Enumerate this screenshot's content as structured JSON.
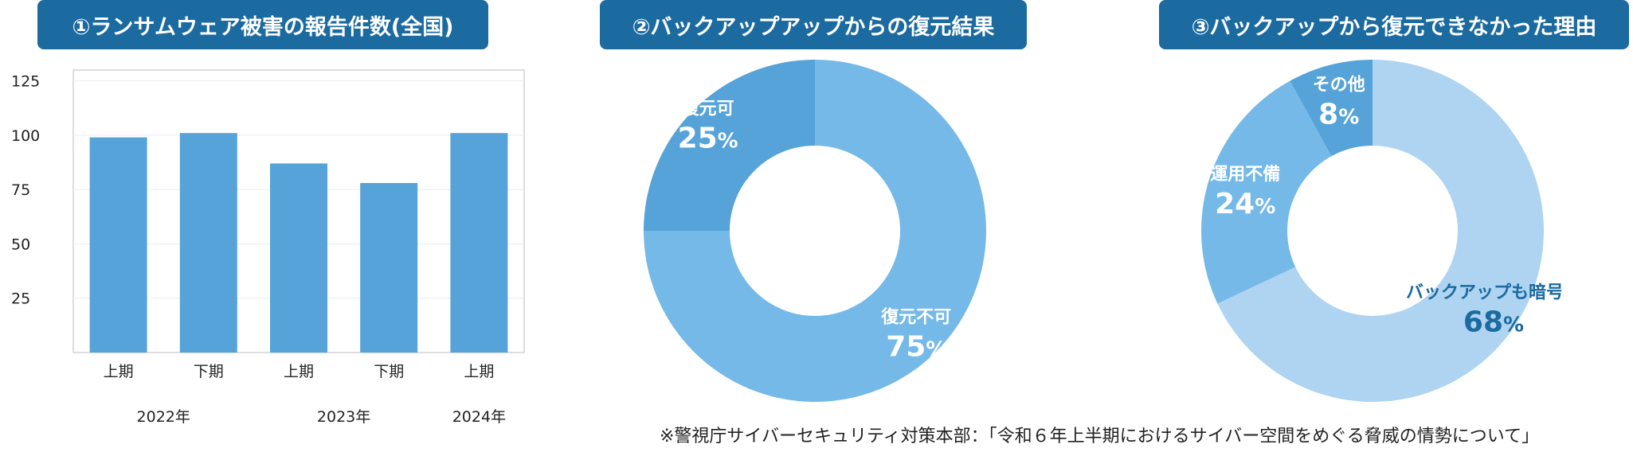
{
  "titles": [
    "①ランサムウェア被害の報告件数(全国)",
    "②バックアップアップからの復元結果",
    "③バックアップから復元できなかった理由"
  ],
  "chart_data": [
    {
      "type": "bar",
      "title": "①ランサムウェア被害の報告件数(全国)",
      "categories": [
        "上期",
        "下期",
        "上期",
        "下期",
        "上期"
      ],
      "year_groups": [
        {
          "label": "2022年",
          "span": [
            0,
            1
          ]
        },
        {
          "label": "2023年",
          "span": [
            2,
            3
          ]
        },
        {
          "label": "2024年",
          "span": [
            4,
            4
          ]
        }
      ],
      "values": [
        99,
        101,
        87,
        78,
        101
      ],
      "ylim": [
        0,
        130
      ],
      "yticks": [
        25,
        50,
        75,
        100,
        125
      ],
      "grid": true,
      "color": "#55a3d8"
    },
    {
      "type": "pie",
      "title": "②バックアップアップからの復元結果",
      "slices": [
        {
          "label": "復元不可",
          "value": 75,
          "display": "75",
          "color": "#74b9e8"
        },
        {
          "label": "復元可",
          "value": 25,
          "display": "25",
          "color": "#55a3d8"
        }
      ]
    },
    {
      "type": "pie",
      "title": "③バックアップから復元できなかった理由",
      "slices": [
        {
          "label": "バックアップも暗号化",
          "value": 68,
          "display": "68",
          "color": "#aed4f1",
          "text_color": "#1b6aa0"
        },
        {
          "label": "運用不備",
          "value": 24,
          "display": "24",
          "color": "#74b9e8",
          "text_color": "#ffffff"
        },
        {
          "label": "その他",
          "value": 8,
          "display": "8",
          "color": "#55a3d8",
          "text_color": "#ffffff"
        }
      ]
    }
  ],
  "percent_sign": "%",
  "source_note": "※警視庁サイバーセキュリティ対策本部：「令和６年上半期におけるサイバー空間をめぐる脅威の情勢について」"
}
